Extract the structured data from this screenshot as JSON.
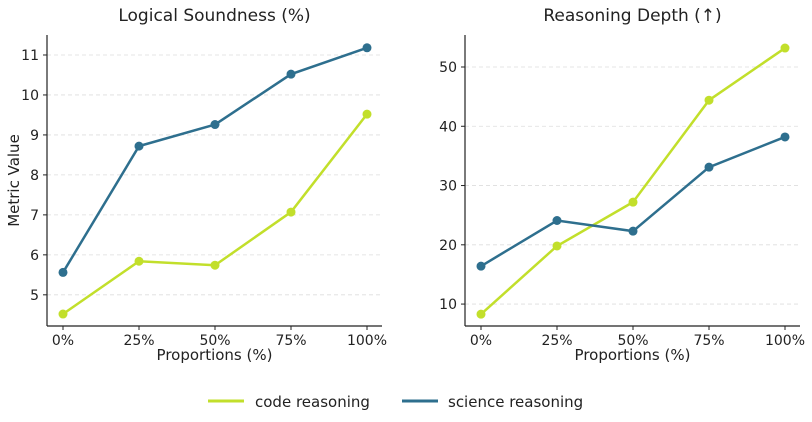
{
  "chart_data": [
    {
      "type": "line",
      "title": "Logical Soundness (%)",
      "xlabel": "Proportions (%)",
      "ylabel": "Metric Value",
      "categories": [
        "0%",
        "25%",
        "50%",
        "75%",
        "100%"
      ],
      "yticks": [
        5,
        6,
        7,
        8,
        9,
        10,
        11
      ],
      "ylim": [
        4.22,
        11.5
      ],
      "grid": "horizontal dashed",
      "series": [
        {
          "name": "code reasoning",
          "color": "#c2df2b",
          "values": [
            4.52,
            5.84,
            5.74,
            7.07,
            9.52
          ]
        },
        {
          "name": "science reasoning",
          "color": "#2e6f8e",
          "values": [
            5.56,
            8.72,
            9.26,
            10.52,
            11.18
          ]
        }
      ]
    },
    {
      "type": "line",
      "title": "Reasoning Depth (↑)",
      "xlabel": "Proportions (%)",
      "ylabel": "",
      "categories": [
        "0%",
        "25%",
        "50%",
        "75%",
        "100%"
      ],
      "yticks": [
        10,
        20,
        30,
        40,
        50
      ],
      "ylim": [
        6.3,
        55.4
      ],
      "grid": "horizontal dashed",
      "series": [
        {
          "name": "code reasoning",
          "color": "#c2df2b",
          "values": [
            8.3,
            19.8,
            27.2,
            44.4,
            53.2
          ]
        },
        {
          "name": "science reasoning",
          "color": "#2e6f8e",
          "values": [
            16.4,
            24.1,
            22.3,
            33.1,
            38.2
          ]
        }
      ]
    }
  ],
  "legend": {
    "placement": "bottom-center",
    "items": [
      {
        "label": "code reasoning",
        "color": "#c2df2b"
      },
      {
        "label": "science reasoning",
        "color": "#2e6f8e"
      }
    ]
  }
}
